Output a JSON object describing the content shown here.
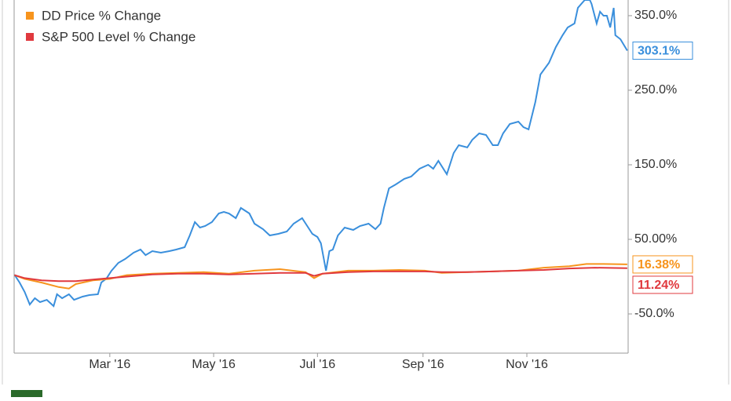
{
  "chart_data": {
    "type": "line",
    "xlim": [
      3.8,
      364.5
    ],
    "xticks": [
      {
        "value": 60,
        "label": "Mar '16"
      },
      {
        "value": 121,
        "label": "May '16"
      },
      {
        "value": 182,
        "label": "Jul '16"
      },
      {
        "value": 244,
        "label": "Sep '16"
      },
      {
        "value": 305,
        "label": "Nov '16"
      }
    ],
    "ylim": [
      -102.6,
      371
    ],
    "yticks": [
      {
        "value": 350,
        "label": "350.0%"
      },
      {
        "value": 250,
        "label": "250.0%"
      },
      {
        "value": 150,
        "label": "150.0%"
      },
      {
        "value": 50,
        "label": "50.00%"
      },
      {
        "value": -50,
        "label": "-50.0%"
      }
    ],
    "legend": "top-left",
    "series": [
      {
        "color": "#3a8fdc",
        "last_label": "303.1%",
        "x": [
          4,
          7,
          10,
          13,
          16,
          19,
          23,
          27,
          29,
          32,
          36,
          39,
          44,
          48,
          53,
          55,
          58,
          61,
          65,
          69,
          74,
          78,
          81,
          85,
          90,
          95,
          99,
          104,
          107,
          110,
          113,
          116,
          120,
          124,
          127,
          130,
          134,
          137,
          142,
          145,
          150,
          154,
          159,
          164,
          168,
          173,
          176,
          179,
          182,
          184,
          187,
          189,
          191,
          194,
          198,
          203,
          207,
          212,
          216,
          219,
          221,
          224,
          228,
          233,
          237,
          242,
          247,
          250,
          253,
          258,
          262,
          265,
          270,
          273,
          277,
          281,
          285,
          288,
          291,
          295,
          300,
          303,
          306,
          310,
          313,
          318,
          322,
          326,
          329,
          333,
          335,
          339,
          342,
          343,
          346,
          348,
          350,
          352,
          354,
          356,
          357,
          360,
          364
        ],
        "values": [
          2.6,
          -7.9,
          -20.5,
          -37.4,
          -28.9,
          -34.2,
          -31.1,
          -39.5,
          -23.7,
          -28.9,
          -23.7,
          -31.1,
          -26.8,
          -24.7,
          -23.7,
          -7.9,
          -2.6,
          7.9,
          18.4,
          23.7,
          32.1,
          36.3,
          28.9,
          34.2,
          32.1,
          34.2,
          36.3,
          39.5,
          55.3,
          73.2,
          65.8,
          67.9,
          73.2,
          84.7,
          86.8,
          84.7,
          78.4,
          92.1,
          84.7,
          71.1,
          63.7,
          55.3,
          57.4,
          60.5,
          71.1,
          78.4,
          67.9,
          57.4,
          53.2,
          44.7,
          7.9,
          34.2,
          36.3,
          55.3,
          65.8,
          62.6,
          67.9,
          71.1,
          63.7,
          71.1,
          92.1,
          118.4,
          123.7,
          131.1,
          134.2,
          144.7,
          150,
          144.7,
          155.3,
          137.4,
          165.8,
          176.3,
          173.2,
          183.7,
          192.1,
          190,
          176.3,
          176.3,
          192.1,
          204.7,
          207.9,
          200.5,
          197.4,
          234.2,
          271.1,
          286.8,
          307.9,
          323.7,
          334.2,
          339.5,
          360.5,
          371,
          371,
          365.8,
          339.5,
          355.3,
          350,
          350,
          334.2,
          360.5,
          323.7,
          318.4,
          303.1
        ]
      },
      {
        "name": "DD Price % Change",
        "color": "#f7941d",
        "last_label": "16.38%",
        "x": [
          4,
          10,
          20,
          30,
          36,
          40,
          50,
          60,
          70,
          85,
          100,
          115,
          130,
          145,
          160,
          175,
          180,
          185,
          200,
          215,
          230,
          245,
          255,
          270,
          285,
          300,
          315,
          330,
          340,
          350,
          364
        ],
        "values": [
          2,
          -3,
          -8,
          -14,
          -16,
          -10,
          -5,
          -3,
          2,
          4,
          5,
          6,
          4,
          8,
          10,
          6,
          -2,
          4,
          8,
          8,
          9,
          8,
          5,
          6,
          7,
          8,
          12,
          14,
          17,
          17,
          16.38
        ]
      },
      {
        "name": "S&P 500 Level % Change",
        "color": "#e0393e",
        "last_label": "11.24%",
        "x": [
          4,
          10,
          20,
          30,
          40,
          50,
          60,
          70,
          85,
          100,
          115,
          130,
          145,
          160,
          175,
          180,
          185,
          200,
          215,
          230,
          245,
          255,
          270,
          285,
          300,
          315,
          330,
          345,
          364
        ],
        "values": [
          2,
          -2,
          -5,
          -6,
          -6,
          -4,
          -2,
          0,
          3,
          4,
          4,
          3,
          4,
          5,
          5,
          1,
          4,
          6,
          7,
          7,
          7,
          6,
          6,
          7,
          8,
          9,
          11,
          12,
          11.24
        ]
      }
    ]
  }
}
